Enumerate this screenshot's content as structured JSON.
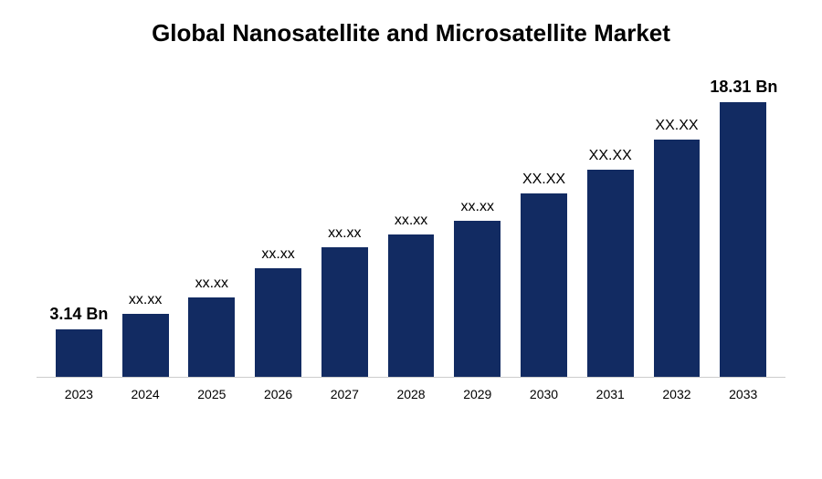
{
  "chart": {
    "type": "bar",
    "title": "Global Nanosatellite and Microsatellite Market",
    "title_fontsize": 26,
    "title_fontweight": "bold",
    "title_color": "#000000",
    "background_color": "#ffffff",
    "bar_color": "#122b62",
    "bar_width_pct": 70,
    "axis_line_color": "#cccccc",
    "label_fontsize": 14,
    "value_label_fontsize": 16,
    "value_label_fontsize_bold": 18,
    "x_label_color": "#000000",
    "value_label_color": "#000000",
    "ylim": [
      0,
      20
    ],
    "categories": [
      "2023",
      "2024",
      "2025",
      "2026",
      "2027",
      "2028",
      "2029",
      "2030",
      "2031",
      "2032",
      "2033"
    ],
    "values": [
      3.14,
      4.2,
      5.3,
      7.2,
      8.6,
      9.5,
      10.4,
      12.2,
      13.8,
      15.8,
      18.31
    ],
    "value_labels": [
      "3.14 Bn",
      "xx.xx",
      "xx.xx",
      "xx.xx",
      "xx.xx",
      "xx.xx",
      "xx.xx",
      "XX.XX",
      "XX.XX",
      "XX.XX",
      "18.31 Bn"
    ],
    "label_bold": [
      true,
      false,
      false,
      false,
      false,
      false,
      false,
      false,
      false,
      false,
      true
    ]
  }
}
